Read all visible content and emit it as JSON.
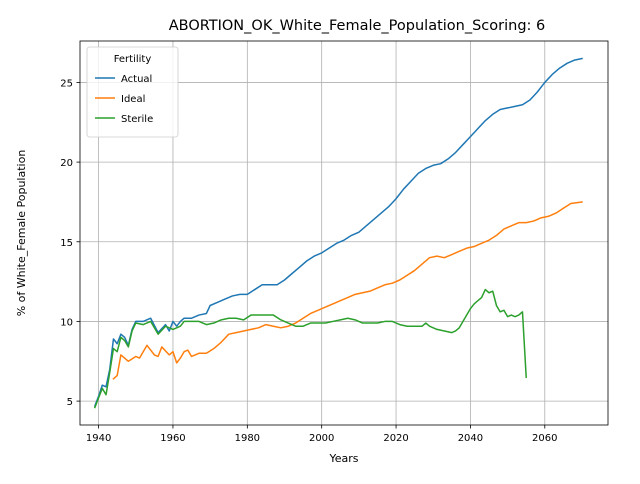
{
  "chart_data": {
    "type": "line",
    "title": "ABORTION_OK_White_Female_Population_Scoring: 6",
    "xlabel": "Years",
    "ylabel": "% of White_Female Population",
    "xlim": [
      1935,
      2077
    ],
    "ylim": [
      3.5,
      27.6
    ],
    "xticks": [
      1940,
      1960,
      1980,
      2000,
      2020,
      2040,
      2060
    ],
    "yticks": [
      5,
      10,
      15,
      20,
      25
    ],
    "grid": true,
    "legend": {
      "title": "Fertility",
      "placement": "top-left"
    },
    "series": [
      {
        "name": "Actual",
        "color": "#1f77b4",
        "x": [
          1939,
          1940,
          1941,
          1942,
          1943,
          1944,
          1945,
          1946,
          1947,
          1948,
          1949,
          1950,
          1952,
          1954,
          1956,
          1958,
          1959,
          1960,
          1961,
          1962,
          1963,
          1965,
          1967,
          1969,
          1970,
          1972,
          1974,
          1976,
          1978,
          1980,
          1982,
          1984,
          1986,
          1988,
          1990,
          1992,
          1994,
          1996,
          1998,
          2000,
          2002,
          2004,
          2006,
          2008,
          2010,
          2012,
          2014,
          2016,
          2018,
          2020,
          2022,
          2024,
          2026,
          2028,
          2030,
          2032,
          2034,
          2036,
          2038,
          2040,
          2042,
          2044,
          2046,
          2048,
          2050,
          2052,
          2054,
          2056,
          2058,
          2060,
          2062,
          2064,
          2066,
          2068,
          2070
        ],
        "values": [
          4.7,
          5.3,
          6.0,
          5.9,
          7.0,
          8.9,
          8.6,
          9.2,
          9.0,
          8.5,
          9.5,
          10.0,
          10.0,
          10.2,
          9.3,
          9.8,
          9.4,
          10.0,
          9.7,
          10.0,
          10.2,
          10.2,
          10.4,
          10.5,
          11.0,
          11.2,
          11.4,
          11.6,
          11.7,
          11.7,
          12.0,
          12.3,
          12.3,
          12.3,
          12.6,
          13.0,
          13.4,
          13.8,
          14.1,
          14.3,
          14.6,
          14.9,
          15.1,
          15.4,
          15.6,
          16.0,
          16.4,
          16.8,
          17.2,
          17.7,
          18.3,
          18.8,
          19.3,
          19.6,
          19.8,
          19.9,
          20.2,
          20.6,
          21.1,
          21.6,
          22.1,
          22.6,
          23.0,
          23.3,
          23.4,
          23.5,
          23.6,
          23.9,
          24.4,
          25.0,
          25.5,
          25.9,
          26.2,
          26.4,
          26.5
        ]
      },
      {
        "name": "Ideal",
        "color": "#ff7f0e",
        "x": [
          1944,
          1945,
          1946,
          1948,
          1950,
          1951,
          1953,
          1955,
          1956,
          1957,
          1959,
          1960,
          1961,
          1962,
          1963,
          1964,
          1965,
          1967,
          1969,
          1971,
          1973,
          1975,
          1977,
          1979,
          1981,
          1983,
          1985,
          1987,
          1989,
          1991,
          1993,
          1995,
          1997,
          1999,
          2001,
          2003,
          2005,
          2007,
          2009,
          2011,
          2013,
          2015,
          2017,
          2019,
          2021,
          2023,
          2025,
          2027,
          2029,
          2031,
          2033,
          2035,
          2037,
          2039,
          2041,
          2043,
          2045,
          2047,
          2049,
          2051,
          2053,
          2055,
          2057,
          2059,
          2061,
          2063,
          2065,
          2067,
          2070
        ],
        "values": [
          6.4,
          6.6,
          7.9,
          7.5,
          7.8,
          7.7,
          8.5,
          7.9,
          7.8,
          8.4,
          7.9,
          8.1,
          7.4,
          7.7,
          8.1,
          8.2,
          7.8,
          8.0,
          8.0,
          8.3,
          8.7,
          9.2,
          9.3,
          9.4,
          9.5,
          9.6,
          9.8,
          9.7,
          9.6,
          9.7,
          9.9,
          10.2,
          10.5,
          10.7,
          10.9,
          11.1,
          11.3,
          11.5,
          11.7,
          11.8,
          11.9,
          12.1,
          12.3,
          12.4,
          12.6,
          12.9,
          13.2,
          13.6,
          14.0,
          14.1,
          14.0,
          14.2,
          14.4,
          14.6,
          14.7,
          14.9,
          15.1,
          15.4,
          15.8,
          16.0,
          16.2,
          16.2,
          16.3,
          16.5,
          16.6,
          16.8,
          17.1,
          17.4,
          17.5
        ]
      },
      {
        "name": "Sterile",
        "color": "#2ca02c",
        "x": [
          1939,
          1940,
          1941,
          1942,
          1943,
          1944,
          1945,
          1946,
          1947,
          1948,
          1949,
          1950,
          1952,
          1954,
          1956,
          1958,
          1960,
          1961,
          1962,
          1963,
          1965,
          1967,
          1969,
          1971,
          1973,
          1975,
          1977,
          1979,
          1981,
          1983,
          1985,
          1987,
          1989,
          1991,
          1993,
          1995,
          1997,
          1999,
          2001,
          2003,
          2005,
          2007,
          2009,
          2011,
          2013,
          2015,
          2017,
          2019,
          2021,
          2023,
          2025,
          2027,
          2028,
          2029,
          2031,
          2033,
          2035,
          2036,
          2037,
          2038,
          2039,
          2040,
          2041,
          2042,
          2043,
          2044,
          2045,
          2046,
          2047,
          2048,
          2049,
          2050,
          2051,
          2052,
          2053,
          2054,
          2055
        ],
        "values": [
          4.6,
          5.2,
          5.8,
          5.4,
          6.8,
          8.3,
          8.1,
          9.0,
          8.8,
          8.4,
          9.4,
          9.9,
          9.8,
          10.0,
          9.2,
          9.7,
          9.5,
          9.6,
          9.7,
          10.0,
          10.0,
          10.0,
          9.8,
          9.9,
          10.1,
          10.2,
          10.2,
          10.1,
          10.4,
          10.4,
          10.4,
          10.4,
          10.1,
          9.9,
          9.7,
          9.7,
          9.9,
          9.9,
          9.9,
          10.0,
          10.1,
          10.2,
          10.1,
          9.9,
          9.9,
          9.9,
          10.0,
          10.0,
          9.8,
          9.7,
          9.7,
          9.7,
          9.9,
          9.7,
          9.5,
          9.4,
          9.3,
          9.4,
          9.6,
          10.0,
          10.4,
          10.8,
          11.1,
          11.3,
          11.5,
          12.0,
          11.8,
          11.9,
          11.0,
          10.6,
          10.7,
          10.3,
          10.4,
          10.3,
          10.4,
          10.6,
          6.5
        ]
      }
    ]
  }
}
